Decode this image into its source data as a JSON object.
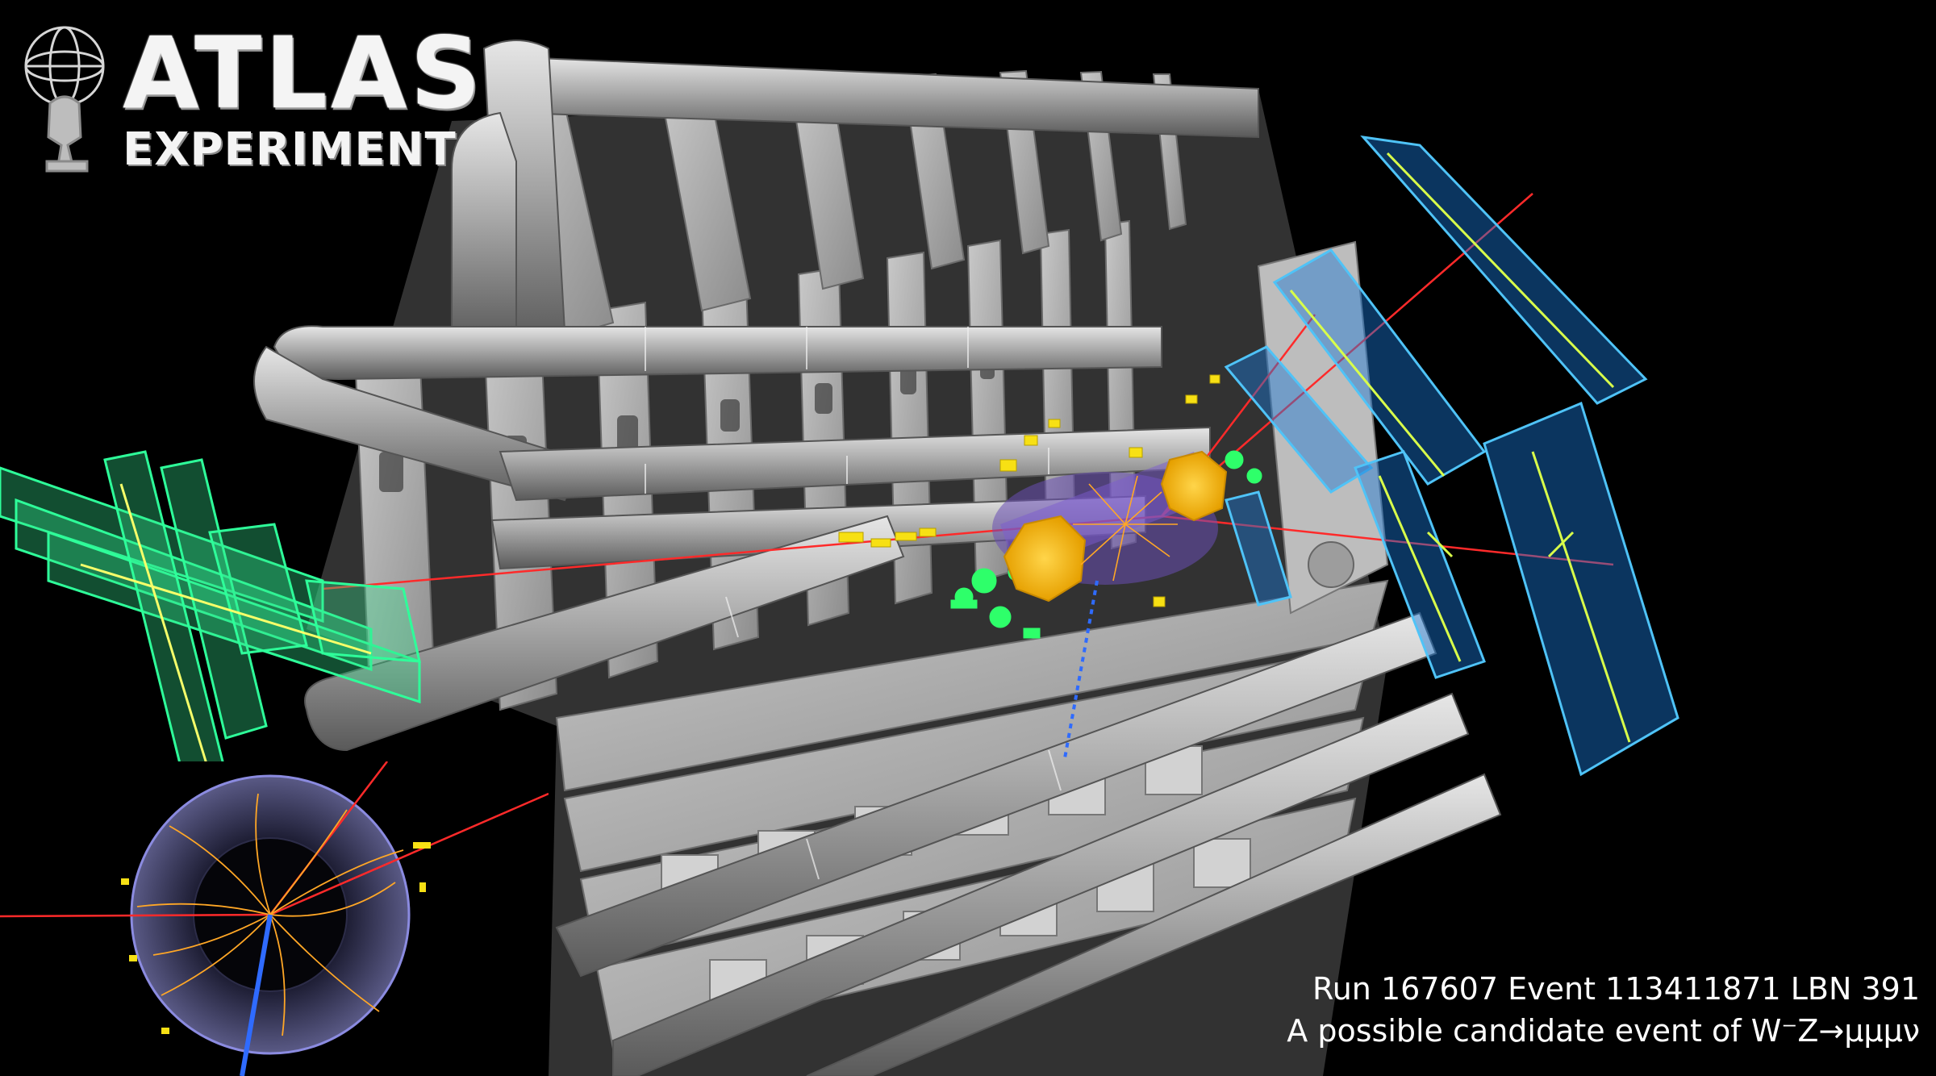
{
  "logo": {
    "title": "ATLAS",
    "subtitle": "EXPERIMENT",
    "emblem_icon": "atlas-figure-globe-icon"
  },
  "caption": {
    "line1": "Run 167607 Event 113411871 LBN 391",
    "line2": "A possible candidate event of W⁻Z→μμμν"
  },
  "colors": {
    "background": "#000000",
    "detector_structure": "#b4b4b4",
    "muon_chambers_right": "#4fc3f7",
    "muon_chambers_left": "#34e08c",
    "muon_tracks": "#ff2a2a",
    "calorimeter": "#f5b800",
    "inner_tracks": "#ffa726",
    "missing_et": "#2f6bff",
    "caption_text": "#ffffff"
  }
}
